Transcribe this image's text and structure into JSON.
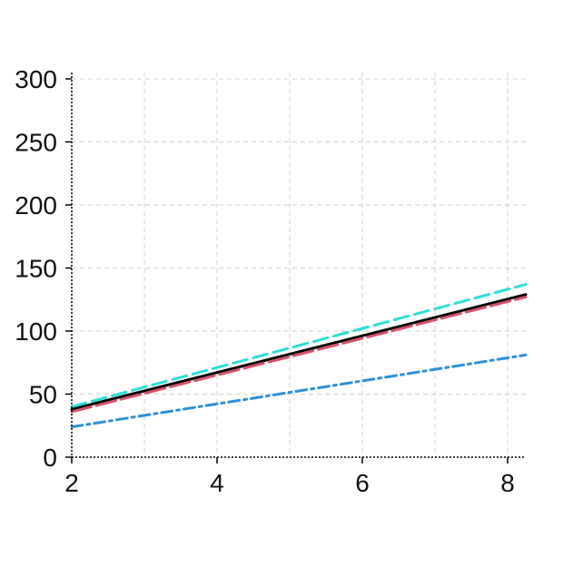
{
  "chart_data": {
    "type": "line",
    "title": "",
    "xlabel": "",
    "ylabel": "",
    "xlim": [
      2,
      8.25
    ],
    "ylim": [
      0,
      305
    ],
    "grid": true,
    "legend": "none",
    "x_ticks": [
      {
        "value": 2,
        "label": "2"
      },
      {
        "value": 4,
        "label": "4"
      },
      {
        "value": 6,
        "label": "6"
      },
      {
        "value": 8,
        "label": "8"
      }
    ],
    "y_ticks": [
      {
        "value": 0,
        "label": "0"
      },
      {
        "value": 50,
        "label": "50"
      },
      {
        "value": 100,
        "label": "100"
      },
      {
        "value": 150,
        "label": "150"
      },
      {
        "value": 200,
        "label": "200"
      },
      {
        "value": 250,
        "label": "250"
      },
      {
        "value": 300,
        "label": "300"
      }
    ],
    "x_minor_grid": [
      3,
      5,
      7
    ],
    "series": [
      {
        "color": "#000000",
        "dash": "solid",
        "x": [
          2,
          8.25
        ],
        "y": [
          38,
          129
        ]
      },
      {
        "color": "#d4536b",
        "dash": "longdash",
        "x": [
          2,
          8.25
        ],
        "y": [
          36,
          127
        ]
      },
      {
        "color": "#2bdfd6",
        "dash": "dash",
        "x": [
          2,
          8.25
        ],
        "y": [
          40,
          137
        ]
      },
      {
        "color": "#2b8fd9",
        "dash": "dashdot",
        "x": [
          2,
          8.25
        ],
        "y": [
          24,
          81
        ]
      }
    ]
  }
}
